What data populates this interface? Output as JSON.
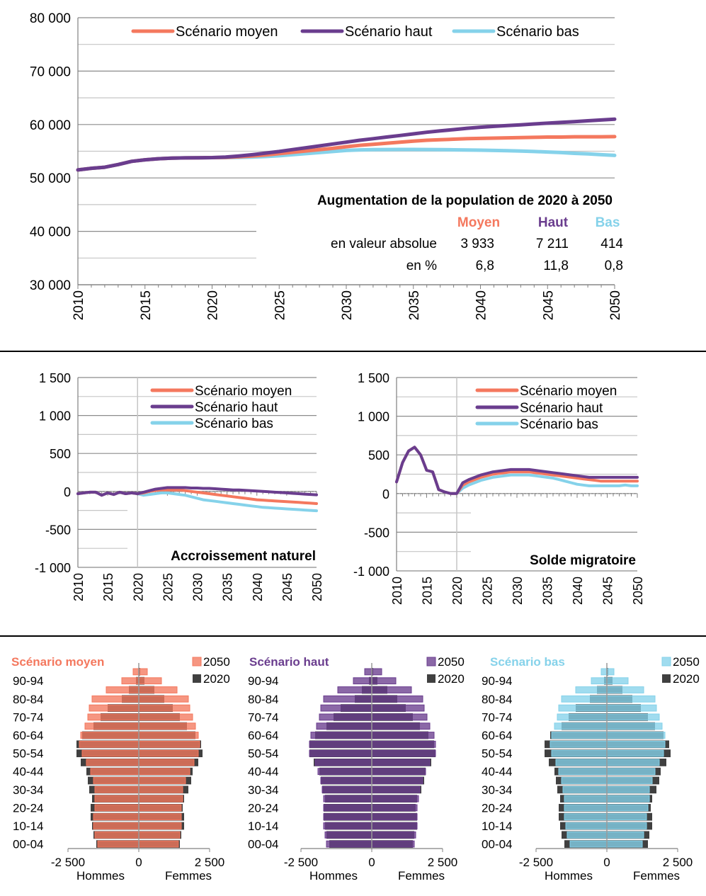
{
  "colors": {
    "moyen": "#f4785e",
    "haut": "#6a3d8e",
    "bas": "#85d2ea",
    "grid": "#8c8c8c",
    "grid_light": "#c6c6c6",
    "axis": "#808080",
    "text": "#000000",
    "dark_2020": "#404040"
  },
  "chart_data": [
    {
      "type": "line",
      "id": "population",
      "x_start": 2010,
      "x_end": 2050,
      "x_step": 1,
      "ylim": [
        30000,
        80000
      ],
      "y_ticks": [
        30000,
        40000,
        50000,
        60000,
        70000,
        80000
      ],
      "y_tick_labels": [
        "30 000",
        "40 000",
        "50 000",
        "60 000",
        "70 000",
        "80 000"
      ],
      "x_ticks": [
        2010,
        2015,
        2020,
        2025,
        2030,
        2035,
        2040,
        2045,
        2050
      ],
      "x_tick_labels": [
        "2010",
        "2015",
        "2020",
        "2025",
        "2030",
        "2035",
        "2040",
        "2045",
        "2050"
      ],
      "legend": [
        "Scénario moyen",
        "Scénario haut",
        "Scénario bas"
      ],
      "legend_position": "top",
      "series": [
        {
          "name": "Scénario moyen",
          "color_key": "moyen",
          "values": [
            51500,
            51800,
            52000,
            52500,
            53100,
            53400,
            53600,
            53700,
            53750,
            53780,
            53800,
            53850,
            53950,
            54100,
            54300,
            54550,
            54800,
            55050,
            55300,
            55550,
            55850,
            56100,
            56300,
            56500,
            56700,
            56900,
            57050,
            57150,
            57250,
            57350,
            57400,
            57450,
            57500,
            57550,
            57600,
            57650,
            57650,
            57700,
            57700,
            57700,
            57733
          ]
        },
        {
          "name": "Scénario haut",
          "color_key": "haut",
          "values": [
            51500,
            51800,
            52000,
            52500,
            53100,
            53400,
            53600,
            53700,
            53750,
            53780,
            53800,
            53900,
            54100,
            54350,
            54650,
            54950,
            55300,
            55650,
            56000,
            56350,
            56700,
            57050,
            57350,
            57650,
            57950,
            58250,
            58550,
            58800,
            59050,
            59300,
            59500,
            59650,
            59800,
            59950,
            60100,
            60250,
            60400,
            60550,
            60700,
            60850,
            61011
          ]
        },
        {
          "name": "Scénario bas",
          "color_key": "bas",
          "values": [
            51500,
            51800,
            52000,
            52500,
            53100,
            53400,
            53600,
            53700,
            53750,
            53780,
            53800,
            53800,
            53850,
            53900,
            54000,
            54150,
            54350,
            54550,
            54750,
            54950,
            55150,
            55250,
            55300,
            55320,
            55330,
            55330,
            55320,
            55300,
            55270,
            55230,
            55200,
            55150,
            55100,
            55030,
            54950,
            54850,
            54750,
            54600,
            54500,
            54350,
            54214
          ]
        }
      ],
      "table": {
        "title": "Augmentation de la population de 2020 à 2050",
        "headers": [
          "Moyen",
          "Haut",
          "Bas"
        ],
        "rows": [
          {
            "label": "en valeur absolue",
            "values": [
              "3 933",
              "7 211",
              "414"
            ]
          },
          {
            "label": "en %",
            "values": [
              "6,8",
              "11,8",
              "0,8"
            ]
          }
        ]
      }
    },
    {
      "type": "line",
      "id": "accroissement",
      "title": "Accroissement naturel",
      "x_start": 2010,
      "x_end": 2050,
      "ylim": [
        -1000,
        1500
      ],
      "y_ticks": [
        -1000,
        -500,
        0,
        500,
        1000,
        1500
      ],
      "y_tick_labels": [
        "-1 000",
        "-500",
        "0",
        "500",
        "1 000",
        "1 500"
      ],
      "x_ticks": [
        2010,
        2015,
        2020,
        2025,
        2030,
        2035,
        2040,
        2045,
        2050
      ],
      "x_tick_labels": [
        "2010",
        "2015",
        "2020",
        "2025",
        "2030",
        "2035",
        "2040",
        "2045",
        "2050"
      ],
      "legend": [
        "Scénario moyen",
        "Scénario haut",
        "Scénario bas"
      ],
      "legend_position": "top-right",
      "series": [
        {
          "name": "Scénario moyen",
          "color_key": "moyen",
          "values": [
            -30,
            -20,
            -10,
            -10,
            -50,
            -20,
            -40,
            -10,
            -30,
            -20,
            -30,
            -20,
            0,
            10,
            20,
            20,
            20,
            20,
            10,
            0,
            -10,
            -20,
            -30,
            -40,
            -50,
            -60,
            -70,
            -80,
            -90,
            -100,
            -110,
            -115,
            -120,
            -125,
            -130,
            -135,
            -140,
            -145,
            -150,
            -155,
            -160
          ]
        },
        {
          "name": "Scénario haut",
          "color_key": "haut",
          "values": [
            -30,
            -20,
            -10,
            -10,
            -50,
            -20,
            -40,
            -10,
            -30,
            -20,
            -30,
            -10,
            10,
            30,
            40,
            50,
            50,
            50,
            50,
            45,
            45,
            40,
            40,
            35,
            30,
            25,
            20,
            20,
            15,
            10,
            5,
            0,
            -5,
            -10,
            -15,
            -20,
            -25,
            -30,
            -35,
            -40,
            -45
          ]
        },
        {
          "name": "Scénario bas",
          "color_key": "bas",
          "values": [
            -30,
            -20,
            -10,
            -10,
            -50,
            -20,
            -40,
            -10,
            -30,
            -20,
            -30,
            -50,
            -40,
            -30,
            -20,
            -20,
            -30,
            -40,
            -50,
            -70,
            -90,
            -110,
            -120,
            -130,
            -140,
            -150,
            -160,
            -170,
            -180,
            -190,
            -200,
            -210,
            -215,
            -220,
            -225,
            -230,
            -235,
            -240,
            -245,
            -250,
            -255
          ]
        }
      ]
    },
    {
      "type": "line",
      "id": "solde",
      "title": "Solde migratoire",
      "x_start": 2010,
      "x_end": 2050,
      "ylim": [
        -1000,
        1500
      ],
      "y_ticks": [
        -1000,
        -500,
        0,
        500,
        1000,
        1500
      ],
      "y_tick_labels": [
        "-1 000",
        "-500",
        "0",
        "500",
        "1 000",
        "1 500"
      ],
      "x_ticks": [
        2010,
        2015,
        2020,
        2025,
        2030,
        2035,
        2040,
        2045,
        2050
      ],
      "x_tick_labels": [
        "2010",
        "2015",
        "2020",
        "2025",
        "2030",
        "2035",
        "2040",
        "2045",
        "2050"
      ],
      "legend": [
        "Scénario moyen",
        "Scénario haut",
        "Scénario bas"
      ],
      "legend_position": "top-right",
      "series": [
        {
          "name": "Scénario moyen",
          "color_key": "moyen",
          "values": [
            150,
            400,
            550,
            600,
            500,
            300,
            280,
            50,
            20,
            0,
            0,
            110,
            150,
            180,
            210,
            230,
            250,
            260,
            270,
            280,
            280,
            280,
            280,
            270,
            260,
            250,
            240,
            230,
            220,
            210,
            200,
            190,
            180,
            170,
            160,
            160,
            160,
            160,
            160,
            160,
            160
          ]
        },
        {
          "name": "Scénario haut",
          "color_key": "haut",
          "values": [
            150,
            400,
            550,
            600,
            500,
            300,
            280,
            50,
            20,
            0,
            0,
            140,
            180,
            210,
            240,
            260,
            280,
            290,
            300,
            310,
            310,
            310,
            310,
            300,
            290,
            280,
            270,
            260,
            250,
            240,
            230,
            220,
            210,
            210,
            210,
            210,
            210,
            210,
            210,
            210,
            210
          ]
        },
        {
          "name": "Scénario bas",
          "color_key": "bas",
          "values": [
            150,
            400,
            550,
            600,
            500,
            300,
            280,
            50,
            20,
            0,
            0,
            70,
            110,
            140,
            170,
            190,
            210,
            220,
            230,
            240,
            240,
            240,
            240,
            230,
            220,
            210,
            200,
            180,
            160,
            140,
            120,
            110,
            100,
            100,
            100,
            100,
            100,
            100,
            110,
            100,
            100
          ]
        }
      ]
    },
    {
      "type": "bar",
      "subtype": "population-pyramid",
      "id": "pyr_moyen",
      "title": "Scénario moyen",
      "color_key": "moyen",
      "xlim": [
        -2500,
        2500
      ],
      "x_tick_labels": [
        "-2 500",
        "0",
        "2 500"
      ],
      "xlabel_left": "Hommes",
      "xlabel_right": "Femmes",
      "legend": [
        "2050",
        "2020"
      ],
      "age_labels": [
        "00-04",
        "10-14",
        "20-24",
        "30-34",
        "40-44",
        "50-54",
        "60-64",
        "70-74",
        "80-84",
        "90-94"
      ],
      "groups": [
        "00-04",
        "05-09",
        "10-14",
        "15-19",
        "20-24",
        "25-29",
        "30-34",
        "35-39",
        "40-44",
        "45-49",
        "50-54",
        "55-59",
        "60-64",
        "65-69",
        "70-74",
        "75-79",
        "80-84",
        "85-89",
        "90-94",
        "95+"
      ],
      "men_2050": [
        1450,
        1550,
        1600,
        1600,
        1550,
        1550,
        1550,
        1600,
        1700,
        1850,
        2000,
        2100,
        2050,
        1900,
        1800,
        1750,
        1650,
        1150,
        600,
        200
      ],
      "women_2050": [
        1400,
        1450,
        1500,
        1500,
        1500,
        1550,
        1550,
        1650,
        1800,
        1950,
        2100,
        2150,
        2100,
        2000,
        1900,
        1800,
        1750,
        1350,
        800,
        300
      ],
      "men_2020": [
        1500,
        1600,
        1650,
        1700,
        1700,
        1650,
        1750,
        1800,
        1850,
        2050,
        2200,
        2200,
        2000,
        1600,
        1350,
        1100,
        600,
        350,
        100,
        20
      ],
      "women_2020": [
        1450,
        1500,
        1600,
        1600,
        1550,
        1600,
        1750,
        1850,
        1900,
        2100,
        2250,
        2200,
        2000,
        1700,
        1450,
        1200,
        900,
        550,
        200,
        50
      ]
    },
    {
      "type": "bar",
      "subtype": "population-pyramid",
      "id": "pyr_haut",
      "title": "Scénario haut",
      "color_key": "haut",
      "xlim": [
        -2500,
        2500
      ],
      "x_tick_labels": [
        "-2 500",
        "0",
        "2 500"
      ],
      "xlabel_left": "Hommes",
      "xlabel_right": "Femmes",
      "legend": [
        "2050",
        "2020"
      ],
      "age_labels": [
        "00-04",
        "10-14",
        "20-24",
        "30-34",
        "40-44",
        "50-54",
        "60-64",
        "70-74",
        "80-84",
        "90-94"
      ],
      "groups": [
        "00-04",
        "05-09",
        "10-14",
        "15-19",
        "20-24",
        "25-29",
        "30-34",
        "35-39",
        "40-44",
        "45-49",
        "50-54",
        "55-59",
        "60-64",
        "65-69",
        "70-74",
        "75-79",
        "80-84",
        "85-89",
        "90-94",
        "95+"
      ],
      "men_2050": [
        1600,
        1650,
        1700,
        1700,
        1700,
        1700,
        1750,
        1800,
        1900,
        2000,
        2200,
        2200,
        2150,
        1950,
        1850,
        1800,
        1700,
        1200,
        650,
        250
      ],
      "women_2050": [
        1500,
        1550,
        1600,
        1600,
        1600,
        1650,
        1700,
        1800,
        1900,
        2050,
        2250,
        2250,
        2200,
        2050,
        1950,
        1850,
        1800,
        1400,
        850,
        350
      ],
      "men_2020": [
        1500,
        1600,
        1650,
        1700,
        1700,
        1650,
        1750,
        1800,
        1850,
        2050,
        2200,
        2200,
        2000,
        1600,
        1350,
        1100,
        600,
        350,
        100,
        20
      ],
      "women_2020": [
        1450,
        1500,
        1600,
        1600,
        1550,
        1600,
        1750,
        1850,
        1900,
        2100,
        2250,
        2200,
        2000,
        1700,
        1450,
        1200,
        900,
        550,
        200,
        50
      ]
    },
    {
      "type": "bar",
      "subtype": "population-pyramid",
      "id": "pyr_bas",
      "title": "Scénario bas",
      "color_key": "bas",
      "xlim": [
        -2500,
        2500
      ],
      "x_tick_labels": [
        "-2 500",
        "0",
        "2 500"
      ],
      "xlabel_left": "Hommes",
      "xlabel_right": "Femmes",
      "legend": [
        "2050",
        "2020"
      ],
      "age_labels": [
        "00-04",
        "10-14",
        "20-24",
        "30-34",
        "40-44",
        "50-54",
        "60-64",
        "70-74",
        "80-84",
        "90-94"
      ],
      "groups": [
        "00-04",
        "05-09",
        "10-14",
        "15-19",
        "20-24",
        "25-29",
        "30-34",
        "35-39",
        "40-44",
        "45-49",
        "50-54",
        "55-59",
        "60-64",
        "65-69",
        "70-74",
        "75-79",
        "80-84",
        "85-89",
        "90-94",
        "95+"
      ],
      "men_2050": [
        1300,
        1400,
        1450,
        1500,
        1500,
        1500,
        1550,
        1600,
        1700,
        1800,
        1950,
        2000,
        1950,
        1850,
        1750,
        1700,
        1600,
        1100,
        550,
        200
      ],
      "women_2050": [
        1250,
        1300,
        1400,
        1400,
        1450,
        1500,
        1500,
        1600,
        1700,
        1850,
        2000,
        2050,
        2050,
        1950,
        1850,
        1750,
        1700,
        1300,
        750,
        250
      ],
      "men_2020": [
        1500,
        1600,
        1650,
        1700,
        1700,
        1650,
        1750,
        1800,
        1850,
        2050,
        2200,
        2200,
        2000,
        1600,
        1350,
        1100,
        600,
        350,
        100,
        20
      ],
      "women_2020": [
        1450,
        1500,
        1600,
        1600,
        1550,
        1600,
        1750,
        1850,
        1900,
        2100,
        2250,
        2200,
        2000,
        1700,
        1450,
        1200,
        900,
        550,
        200,
        50
      ]
    }
  ]
}
